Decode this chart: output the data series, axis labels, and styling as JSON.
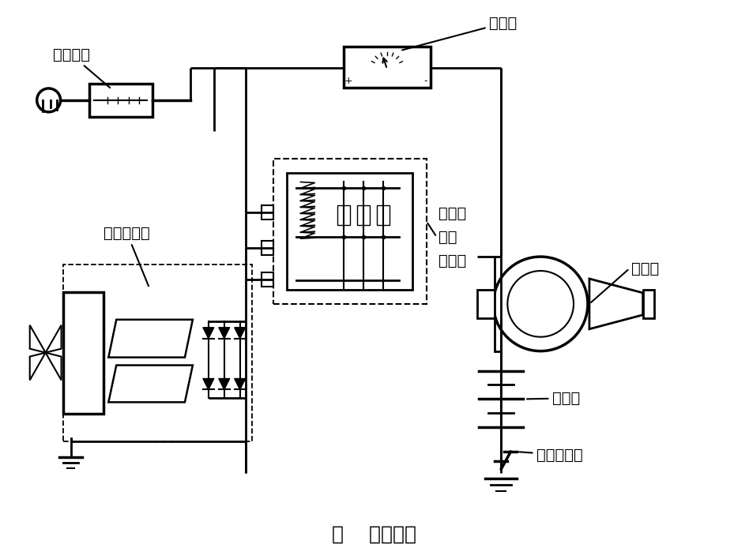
{
  "title": "图    电源电路",
  "title_fontsize": 18,
  "background_color": "#ffffff",
  "line_color": "#000000",
  "line_width": 2.0,
  "labels": {
    "ammeter": "电流表",
    "ignition": "点火开关",
    "regulator_line1": "振动式",
    "regulator_line2": "电压",
    "regulator_line3": "调节器",
    "alternator": "交流发电机",
    "starter": "起动机",
    "battery": "蓄电池",
    "main_switch": "电源总开关"
  }
}
